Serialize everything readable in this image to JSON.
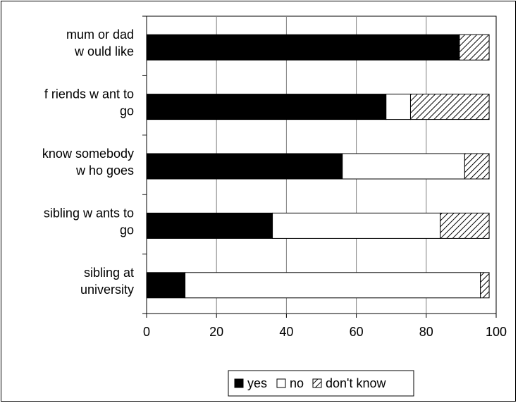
{
  "chart_data": {
    "type": "bar",
    "orientation": "horizontal",
    "stacked": true,
    "categories": [
      [
        "mum or dad",
        "w ould like"
      ],
      [
        "f riends w ant to",
        "go"
      ],
      [
        "know  somebody",
        "w ho goes"
      ],
      [
        "sibling w ants to",
        "go"
      ],
      [
        "sibling at",
        "university"
      ]
    ],
    "series": [
      {
        "name": "yes",
        "values": [
          89.5,
          68.5,
          56,
          36,
          11
        ]
      },
      {
        "name": "no",
        "values": [
          0,
          7,
          35,
          48,
          84.5
        ]
      },
      {
        "name": "don't know",
        "values": [
          8.5,
          22.5,
          7,
          14,
          2.5
        ]
      }
    ],
    "xlim": [
      0,
      100
    ],
    "xticks": [
      "0",
      "20",
      "40",
      "60",
      "80",
      "100"
    ],
    "grid": true,
    "legend_position": "bottom",
    "colors": {
      "yes": "#000000",
      "no": "#ffffff",
      "dont_know": "hatched"
    }
  }
}
